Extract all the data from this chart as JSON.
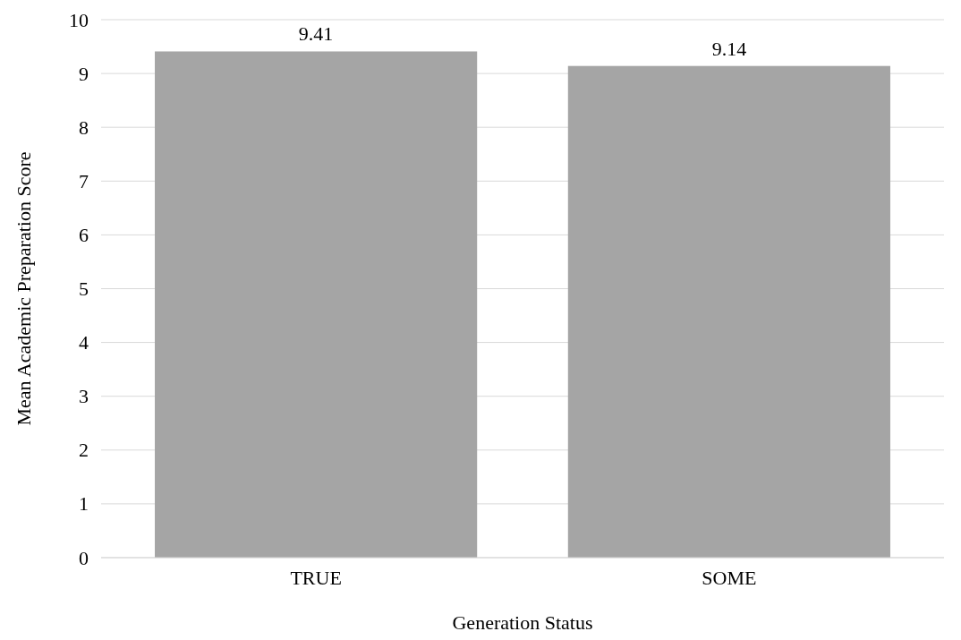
{
  "chart_data": {
    "type": "bar",
    "categories": [
      "TRUE",
      "SOME"
    ],
    "values": [
      9.41,
      9.14
    ],
    "color": "#a5a5a5",
    "xlabel": "Generation Status",
    "ylabel": "Mean Academic Preparation Score",
    "ylim": [
      0,
      10
    ],
    "yticks": [
      0,
      1,
      2,
      3,
      4,
      5,
      6,
      7,
      8,
      9,
      10
    ],
    "grid": "y",
    "data_labels": true
  }
}
